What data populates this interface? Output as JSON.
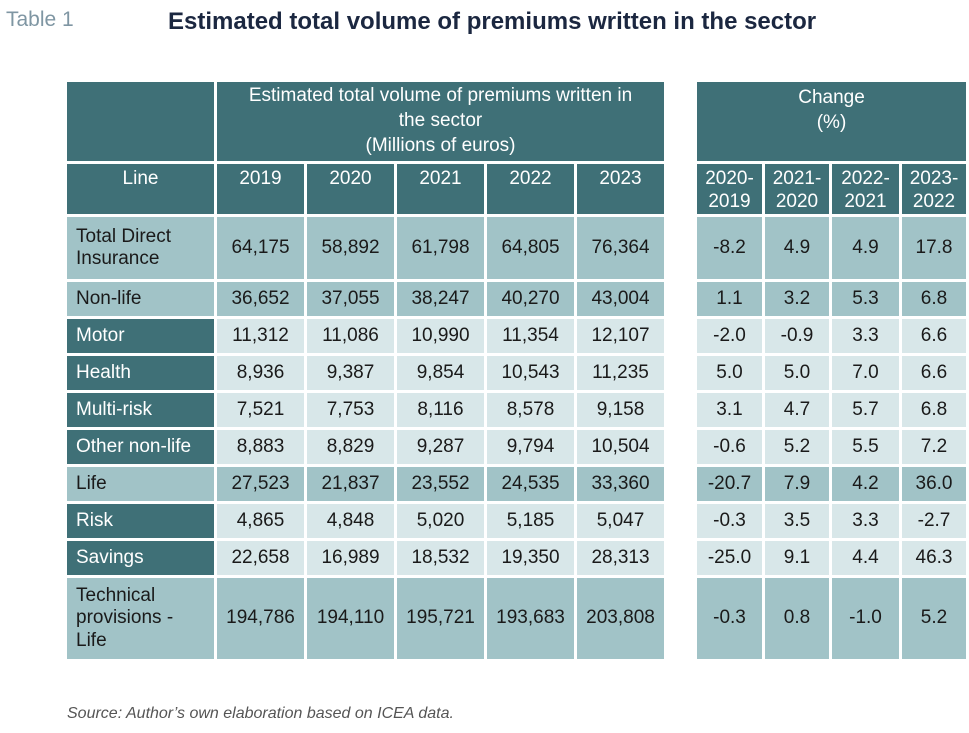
{
  "table_number": "Table 1",
  "title": "Estimated total volume of premiums written in the sector",
  "header": {
    "group_volume": [
      "Estimated total volume of premiums written in",
      "the sector",
      "(Millions of euros)"
    ],
    "group_change": [
      "Change",
      "(%)"
    ],
    "line_label": "Line",
    "years": [
      "2019",
      "2020",
      "2021",
      "2022",
      "2023"
    ],
    "change_periods": [
      [
        "2020-",
        "2019"
      ],
      [
        "2021-",
        "2020"
      ],
      [
        "2022-",
        "2021"
      ],
      [
        "2023-",
        "2022"
      ]
    ]
  },
  "rows": [
    {
      "label": [
        "Total Direct",
        "Insurance"
      ],
      "style": "light",
      "values": [
        "64,175",
        "58,892",
        "61,798",
        "64,805",
        "76,364"
      ],
      "changes": [
        "-8.2",
        "4.9",
        "4.9",
        "17.8"
      ]
    },
    {
      "label": [
        "Non-life"
      ],
      "style": "light",
      "values": [
        "36,652",
        "37,055",
        "38,247",
        "40,270",
        "43,004"
      ],
      "changes": [
        "1.1",
        "3.2",
        "5.3",
        "6.8"
      ]
    },
    {
      "label": [
        "Motor"
      ],
      "style": "pale",
      "values": [
        "11,312",
        "11,086",
        "10,990",
        "11,354",
        "12,107"
      ],
      "changes": [
        "-2.0",
        "-0.9",
        "3.3",
        "6.6"
      ]
    },
    {
      "label": [
        "Health"
      ],
      "style": "pale",
      "values": [
        "8,936",
        "9,387",
        "9,854",
        "10,543",
        "11,235"
      ],
      "changes": [
        "5.0",
        "5.0",
        "7.0",
        "6.6"
      ]
    },
    {
      "label": [
        "Multi-risk"
      ],
      "style": "pale",
      "values": [
        "7,521",
        "7,753",
        "8,116",
        "8,578",
        "9,158"
      ],
      "changes": [
        "3.1",
        "4.7",
        "5.7",
        "6.8"
      ]
    },
    {
      "label": [
        "Other non-life"
      ],
      "style": "pale",
      "values": [
        "8,883",
        "8,829",
        "9,287",
        "9,794",
        "10,504"
      ],
      "changes": [
        "-0.6",
        "5.2",
        "5.5",
        "7.2"
      ]
    },
    {
      "label": [
        "Life"
      ],
      "style": "light",
      "values": [
        "27,523",
        "21,837",
        "23,552",
        "24,535",
        "33,360"
      ],
      "changes": [
        "-20.7",
        "7.9",
        "4.2",
        "36.0"
      ]
    },
    {
      "label": [
        "Risk"
      ],
      "style": "pale",
      "values": [
        "4,865",
        "4,848",
        "5,020",
        "5,185",
        "5,047"
      ],
      "changes": [
        "-0.3",
        "3.5",
        "3.3",
        "-2.7"
      ]
    },
    {
      "label": [
        "Savings"
      ],
      "style": "pale",
      "values": [
        "22,658",
        "16,989",
        "18,532",
        "19,350",
        "28,313"
      ],
      "changes": [
        "-25.0",
        "9.1",
        "4.4",
        "46.3"
      ]
    },
    {
      "label": [
        "Technical",
        "provisions -",
        "Life"
      ],
      "style": "light",
      "values": [
        "194,786",
        "194,110",
        "195,721",
        "193,683",
        "203,808"
      ],
      "changes": [
        "-0.3",
        "0.8",
        "-1.0",
        "5.2"
      ]
    }
  ],
  "source": "Source: Author’s own elaboration based on ICEA data.",
  "colors": {
    "header": "#3f7077",
    "light_row": "#a1c3c7",
    "pale_row": "#d8e7e9"
  }
}
